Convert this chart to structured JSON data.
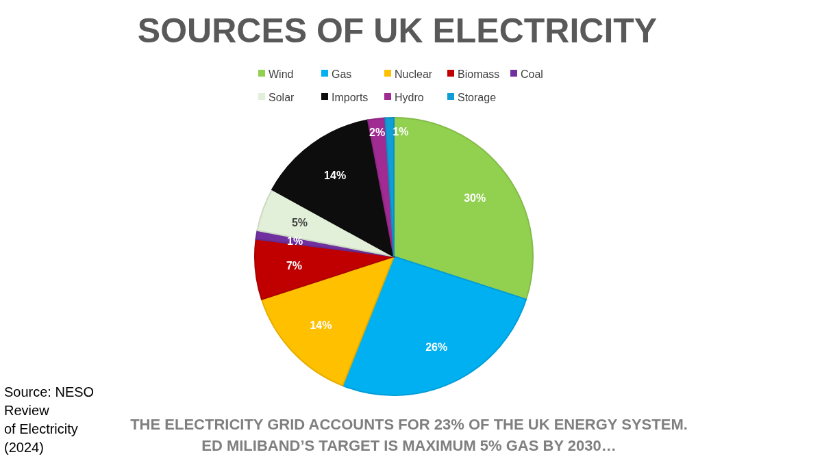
{
  "chart_data": {
    "type": "pie",
    "title": "SOURCES OF UK ELECTRICITY",
    "categories": [
      "Wind",
      "Gas",
      "Nuclear",
      "Biomass",
      "Coal",
      "Solar",
      "Imports",
      "Hydro",
      "Storage"
    ],
    "values": [
      30,
      26,
      14,
      7,
      1,
      5,
      14,
      2,
      1
    ],
    "colors": [
      "#92d050",
      "#00b0f0",
      "#ffc000",
      "#c00000",
      "#7030a0",
      "#e2f0d9",
      "#0d0d0d",
      "#a02b93",
      "#0f9ed5"
    ],
    "value_labels": [
      "30%",
      "26%",
      "14%",
      "7%",
      "1%",
      "5%",
      "14%",
      "2%",
      "1%"
    ],
    "legend": "top",
    "annotations": [
      "Source: NESO Review of Electricity (2024)",
      "THE ELECTRICITY GRID ACCOUNTS FOR 23% OF THE UK ENERGY SYSTEM.",
      "ED MILIBAND’S TARGET IS MAXIMUM 5% GAS BY 2030…"
    ]
  }
}
